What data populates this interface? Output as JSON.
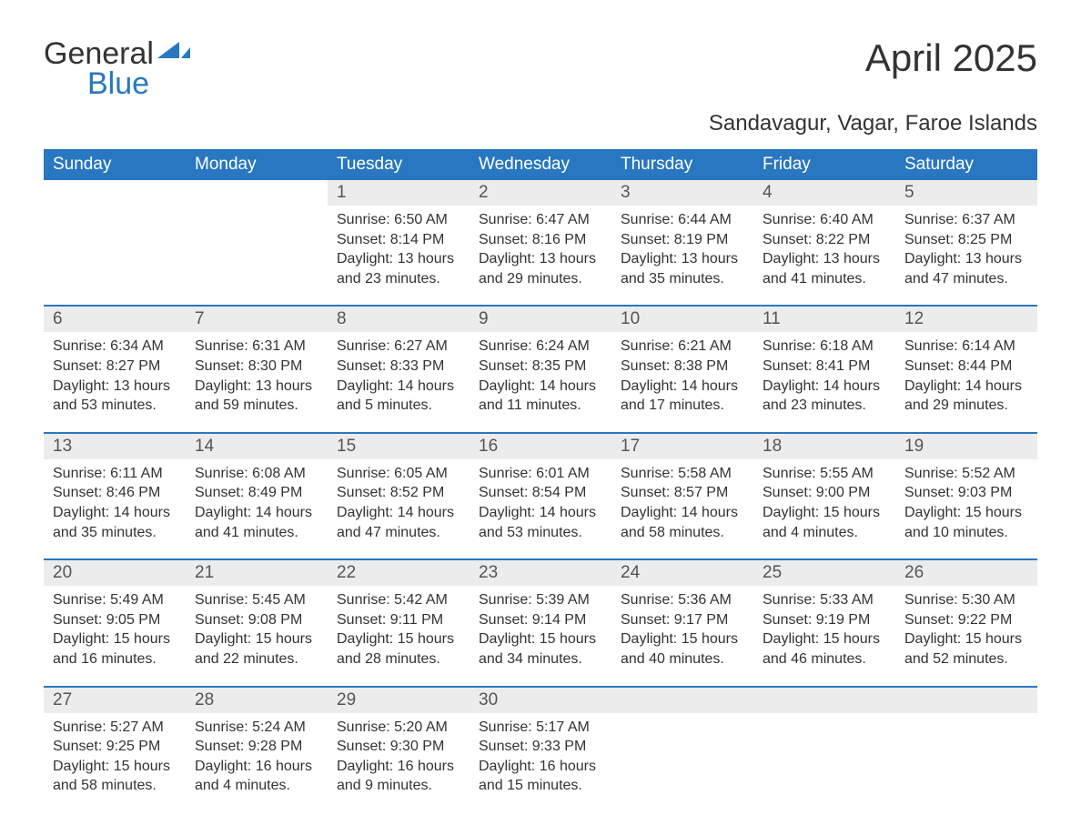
{
  "logo": {
    "general": "General",
    "blue": "Blue"
  },
  "header": {
    "month_title": "April 2025",
    "location": "Sandavagur, Vagar, Faroe Islands"
  },
  "colors": {
    "accent": "#2877c0",
    "header_bg": "#2877c0",
    "header_text": "#ffffff",
    "daynum_bg": "#ececec",
    "body_text": "#333333",
    "background": "#ffffff"
  },
  "calendar": {
    "day_labels": [
      "Sunday",
      "Monday",
      "Tuesday",
      "Wednesday",
      "Thursday",
      "Friday",
      "Saturday"
    ],
    "weeks": [
      [
        null,
        null,
        {
          "n": "1",
          "sunrise": "Sunrise: 6:50 AM",
          "sunset": "Sunset: 8:14 PM",
          "daylight": "Daylight: 13 hours and 23 minutes."
        },
        {
          "n": "2",
          "sunrise": "Sunrise: 6:47 AM",
          "sunset": "Sunset: 8:16 PM",
          "daylight": "Daylight: 13 hours and 29 minutes."
        },
        {
          "n": "3",
          "sunrise": "Sunrise: 6:44 AM",
          "sunset": "Sunset: 8:19 PM",
          "daylight": "Daylight: 13 hours and 35 minutes."
        },
        {
          "n": "4",
          "sunrise": "Sunrise: 6:40 AM",
          "sunset": "Sunset: 8:22 PM",
          "daylight": "Daylight: 13 hours and 41 minutes."
        },
        {
          "n": "5",
          "sunrise": "Sunrise: 6:37 AM",
          "sunset": "Sunset: 8:25 PM",
          "daylight": "Daylight: 13 hours and 47 minutes."
        }
      ],
      [
        {
          "n": "6",
          "sunrise": "Sunrise: 6:34 AM",
          "sunset": "Sunset: 8:27 PM",
          "daylight": "Daylight: 13 hours and 53 minutes."
        },
        {
          "n": "7",
          "sunrise": "Sunrise: 6:31 AM",
          "sunset": "Sunset: 8:30 PM",
          "daylight": "Daylight: 13 hours and 59 minutes."
        },
        {
          "n": "8",
          "sunrise": "Sunrise: 6:27 AM",
          "sunset": "Sunset: 8:33 PM",
          "daylight": "Daylight: 14 hours and 5 minutes."
        },
        {
          "n": "9",
          "sunrise": "Sunrise: 6:24 AM",
          "sunset": "Sunset: 8:35 PM",
          "daylight": "Daylight: 14 hours and 11 minutes."
        },
        {
          "n": "10",
          "sunrise": "Sunrise: 6:21 AM",
          "sunset": "Sunset: 8:38 PM",
          "daylight": "Daylight: 14 hours and 17 minutes."
        },
        {
          "n": "11",
          "sunrise": "Sunrise: 6:18 AM",
          "sunset": "Sunset: 8:41 PM",
          "daylight": "Daylight: 14 hours and 23 minutes."
        },
        {
          "n": "12",
          "sunrise": "Sunrise: 6:14 AM",
          "sunset": "Sunset: 8:44 PM",
          "daylight": "Daylight: 14 hours and 29 minutes."
        }
      ],
      [
        {
          "n": "13",
          "sunrise": "Sunrise: 6:11 AM",
          "sunset": "Sunset: 8:46 PM",
          "daylight": "Daylight: 14 hours and 35 minutes."
        },
        {
          "n": "14",
          "sunrise": "Sunrise: 6:08 AM",
          "sunset": "Sunset: 8:49 PM",
          "daylight": "Daylight: 14 hours and 41 minutes."
        },
        {
          "n": "15",
          "sunrise": "Sunrise: 6:05 AM",
          "sunset": "Sunset: 8:52 PM",
          "daylight": "Daylight: 14 hours and 47 minutes."
        },
        {
          "n": "16",
          "sunrise": "Sunrise: 6:01 AM",
          "sunset": "Sunset: 8:54 PM",
          "daylight": "Daylight: 14 hours and 53 minutes."
        },
        {
          "n": "17",
          "sunrise": "Sunrise: 5:58 AM",
          "sunset": "Sunset: 8:57 PM",
          "daylight": "Daylight: 14 hours and 58 minutes."
        },
        {
          "n": "18",
          "sunrise": "Sunrise: 5:55 AM",
          "sunset": "Sunset: 9:00 PM",
          "daylight": "Daylight: 15 hours and 4 minutes."
        },
        {
          "n": "19",
          "sunrise": "Sunrise: 5:52 AM",
          "sunset": "Sunset: 9:03 PM",
          "daylight": "Daylight: 15 hours and 10 minutes."
        }
      ],
      [
        {
          "n": "20",
          "sunrise": "Sunrise: 5:49 AM",
          "sunset": "Sunset: 9:05 PM",
          "daylight": "Daylight: 15 hours and 16 minutes."
        },
        {
          "n": "21",
          "sunrise": "Sunrise: 5:45 AM",
          "sunset": "Sunset: 9:08 PM",
          "daylight": "Daylight: 15 hours and 22 minutes."
        },
        {
          "n": "22",
          "sunrise": "Sunrise: 5:42 AM",
          "sunset": "Sunset: 9:11 PM",
          "daylight": "Daylight: 15 hours and 28 minutes."
        },
        {
          "n": "23",
          "sunrise": "Sunrise: 5:39 AM",
          "sunset": "Sunset: 9:14 PM",
          "daylight": "Daylight: 15 hours and 34 minutes."
        },
        {
          "n": "24",
          "sunrise": "Sunrise: 5:36 AM",
          "sunset": "Sunset: 9:17 PM",
          "daylight": "Daylight: 15 hours and 40 minutes."
        },
        {
          "n": "25",
          "sunrise": "Sunrise: 5:33 AM",
          "sunset": "Sunset: 9:19 PM",
          "daylight": "Daylight: 15 hours and 46 minutes."
        },
        {
          "n": "26",
          "sunrise": "Sunrise: 5:30 AM",
          "sunset": "Sunset: 9:22 PM",
          "daylight": "Daylight: 15 hours and 52 minutes."
        }
      ],
      [
        {
          "n": "27",
          "sunrise": "Sunrise: 5:27 AM",
          "sunset": "Sunset: 9:25 PM",
          "daylight": "Daylight: 15 hours and 58 minutes."
        },
        {
          "n": "28",
          "sunrise": "Sunrise: 5:24 AM",
          "sunset": "Sunset: 9:28 PM",
          "daylight": "Daylight: 16 hours and 4 minutes."
        },
        {
          "n": "29",
          "sunrise": "Sunrise: 5:20 AM",
          "sunset": "Sunset: 9:30 PM",
          "daylight": "Daylight: 16 hours and 9 minutes."
        },
        {
          "n": "30",
          "sunrise": "Sunrise: 5:17 AM",
          "sunset": "Sunset: 9:33 PM",
          "daylight": "Daylight: 16 hours and 15 minutes."
        },
        null,
        null,
        null
      ]
    ]
  }
}
